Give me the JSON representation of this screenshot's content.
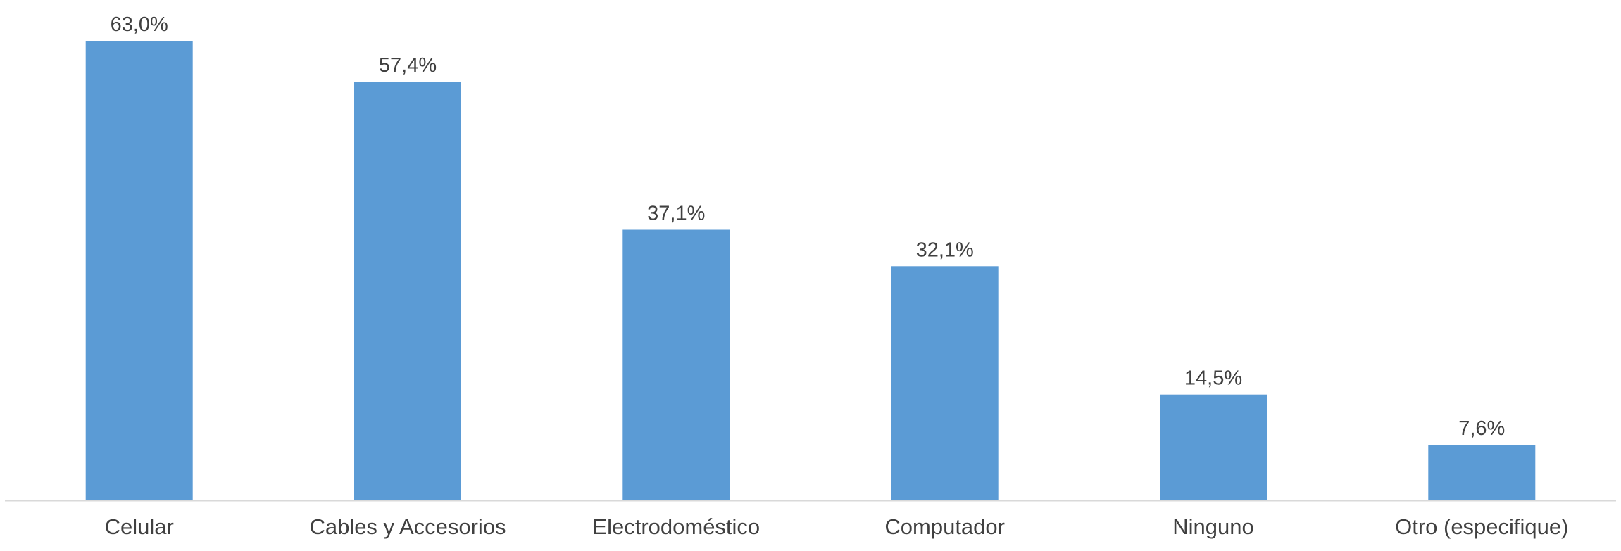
{
  "chart_data": {
    "type": "bar",
    "categories": [
      "Celular",
      "Cables y Accesorios",
      "Electrodoméstico",
      "Computador",
      "Ninguno",
      "Otro (especifique)"
    ],
    "values": [
      63.0,
      57.4,
      37.1,
      32.1,
      14.5,
      7.6
    ],
    "value_labels": [
      "63,0%",
      "57,4%",
      "37,1%",
      "32,1%",
      "14,5%",
      "7,6%"
    ],
    "title": "",
    "xlabel": "",
    "ylabel": "",
    "ylim": [
      0,
      63.0
    ],
    "grid": false,
    "legend": "none",
    "colors": {
      "bar": "#5B9BD5",
      "axis": "#D9D9D9",
      "text": "#404040"
    }
  }
}
